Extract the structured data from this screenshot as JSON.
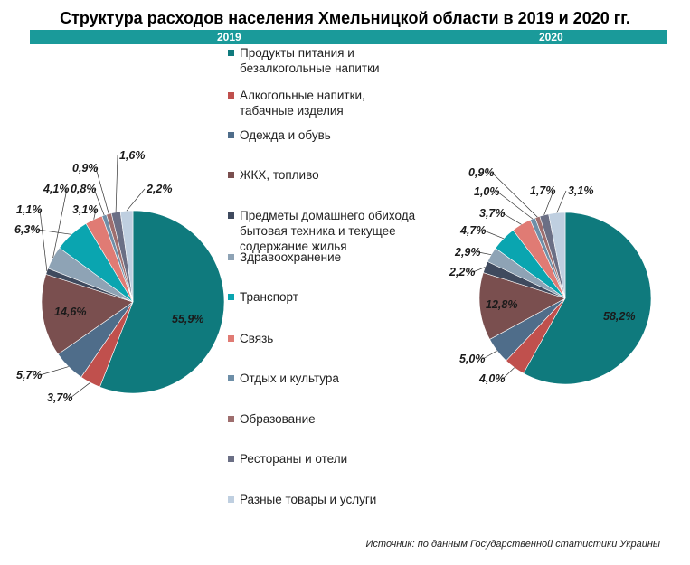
{
  "title": "Структура расходов населения Хмельницкой области в 2019 и 2020 гг.",
  "source": "Источник: по данным Государственной статистики Украины",
  "colors": [
    "#0f7a7d",
    "#c0504d",
    "#4f6d8a",
    "#7a4f4f",
    "#3f4a5e",
    "#8ea3b5",
    "#0aa5b0",
    "#e07b74",
    "#6e8fa8",
    "#9e6e6e",
    "#6b6f85",
    "#bfcfe0"
  ],
  "band_color": "#1a9a9a",
  "chart_data": {
    "type": "pie",
    "title": "Структура расходов населения Хмельницкой области в 2019 и 2020 гг.",
    "categories": [
      "Продукты питания и безалкогольные напитки",
      "Алкогольные напитки, табачные изделия",
      "Одежда и обувь",
      "ЖКХ, топливо",
      "Предметы домашнего обихода бытовая техника и текущее содержание жилья",
      "Здравоохранение",
      "Транспорт",
      "Связь",
      "Отдых и культура",
      "Образование",
      "Рестораны и отели",
      "Разные товары и услуги"
    ],
    "series": [
      {
        "name": "2019",
        "values": [
          55.9,
          3.7,
          5.7,
          14.6,
          1.1,
          4.1,
          6.3,
          3.1,
          0.8,
          0.9,
          1.6,
          2.2
        ],
        "labels": [
          "55,9%",
          "3,7%",
          "5,7%",
          "14,6%",
          "1,1%",
          "4,1%",
          "6,3%",
          "3,1%",
          "0,8%",
          "0,9%",
          "1,6%",
          "2,2%"
        ]
      },
      {
        "name": "2020",
        "values": [
          58.2,
          4.0,
          5.0,
          12.8,
          2.2,
          2.9,
          4.7,
          3.7,
          1.0,
          0.9,
          1.7,
          3.1
        ],
        "labels": [
          "58,2%",
          "4,0%",
          "5,0%",
          "12,8%",
          "2,2%",
          "2,9%",
          "4,7%",
          "3,7%",
          "1,0%",
          "0,9%",
          "1,7%",
          "3,1%"
        ]
      }
    ],
    "legend_position": "center"
  }
}
